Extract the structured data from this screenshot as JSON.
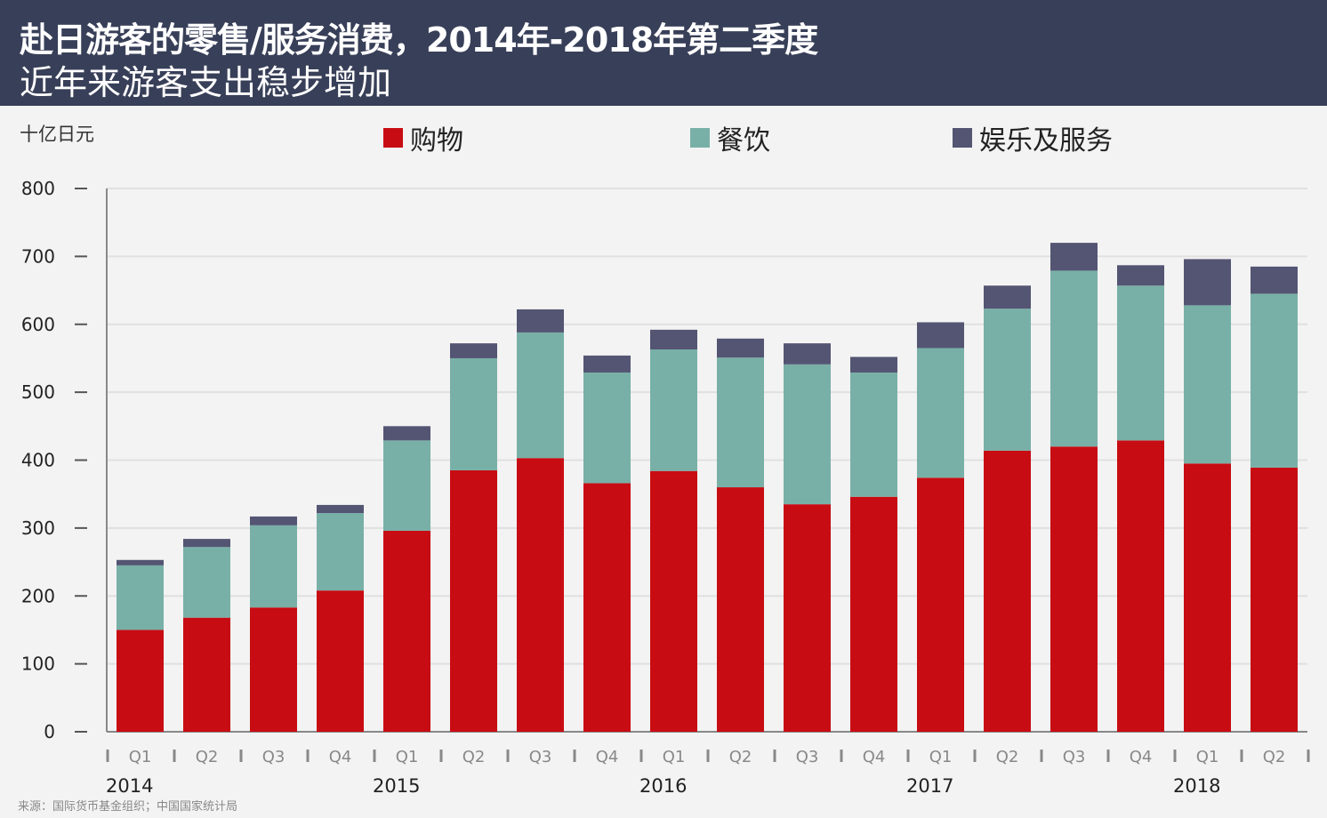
{
  "header": {
    "title": "赴日游客的零售/服务消费，2014年-2018年第二季度",
    "subtitle": "近年来游客支出稳步增加"
  },
  "source": "来源：国际货币基金组织；中国国家统计局",
  "chart_data": {
    "type": "bar",
    "stacked": true,
    "title": "赴日游客的零售/服务消费，2014年-2018年第二季度",
    "ylabel": "十亿日元",
    "xlabel": "",
    "ylim": [
      0,
      800
    ],
    "yticks": [
      0,
      100,
      200,
      300,
      400,
      500,
      600,
      700,
      800
    ],
    "grid": true,
    "legend_position": "top",
    "categories": [
      "Q1",
      "Q2",
      "Q3",
      "Q4",
      "Q1",
      "Q2",
      "Q3",
      "Q4",
      "Q1",
      "Q2",
      "Q3",
      "Q4",
      "Q1",
      "Q2",
      "Q3",
      "Q4",
      "Q1",
      "Q2"
    ],
    "years": [
      "2014",
      "2015",
      "2016",
      "2017",
      "2018"
    ],
    "colors": {
      "shopping": "#c80c13",
      "dining": "#78b0a7",
      "entertainment": "#545573"
    },
    "series": [
      {
        "name": "购物",
        "key": "shopping",
        "values": [
          150,
          168,
          183,
          208,
          296,
          385,
          403,
          366,
          384,
          360,
          335,
          346,
          374,
          414,
          420,
          429,
          395,
          389
        ]
      },
      {
        "name": "餐饮",
        "key": "dining",
        "values": [
          95,
          104,
          121,
          114,
          133,
          165,
          185,
          163,
          179,
          191,
          206,
          183,
          191,
          209,
          259,
          228,
          233,
          256
        ]
      },
      {
        "name": "娱乐及服务",
        "key": "entertainment",
        "values": [
          8,
          12,
          13,
          12,
          21,
          22,
          34,
          25,
          29,
          28,
          31,
          23,
          38,
          34,
          41,
          30,
          68,
          40
        ]
      }
    ]
  }
}
